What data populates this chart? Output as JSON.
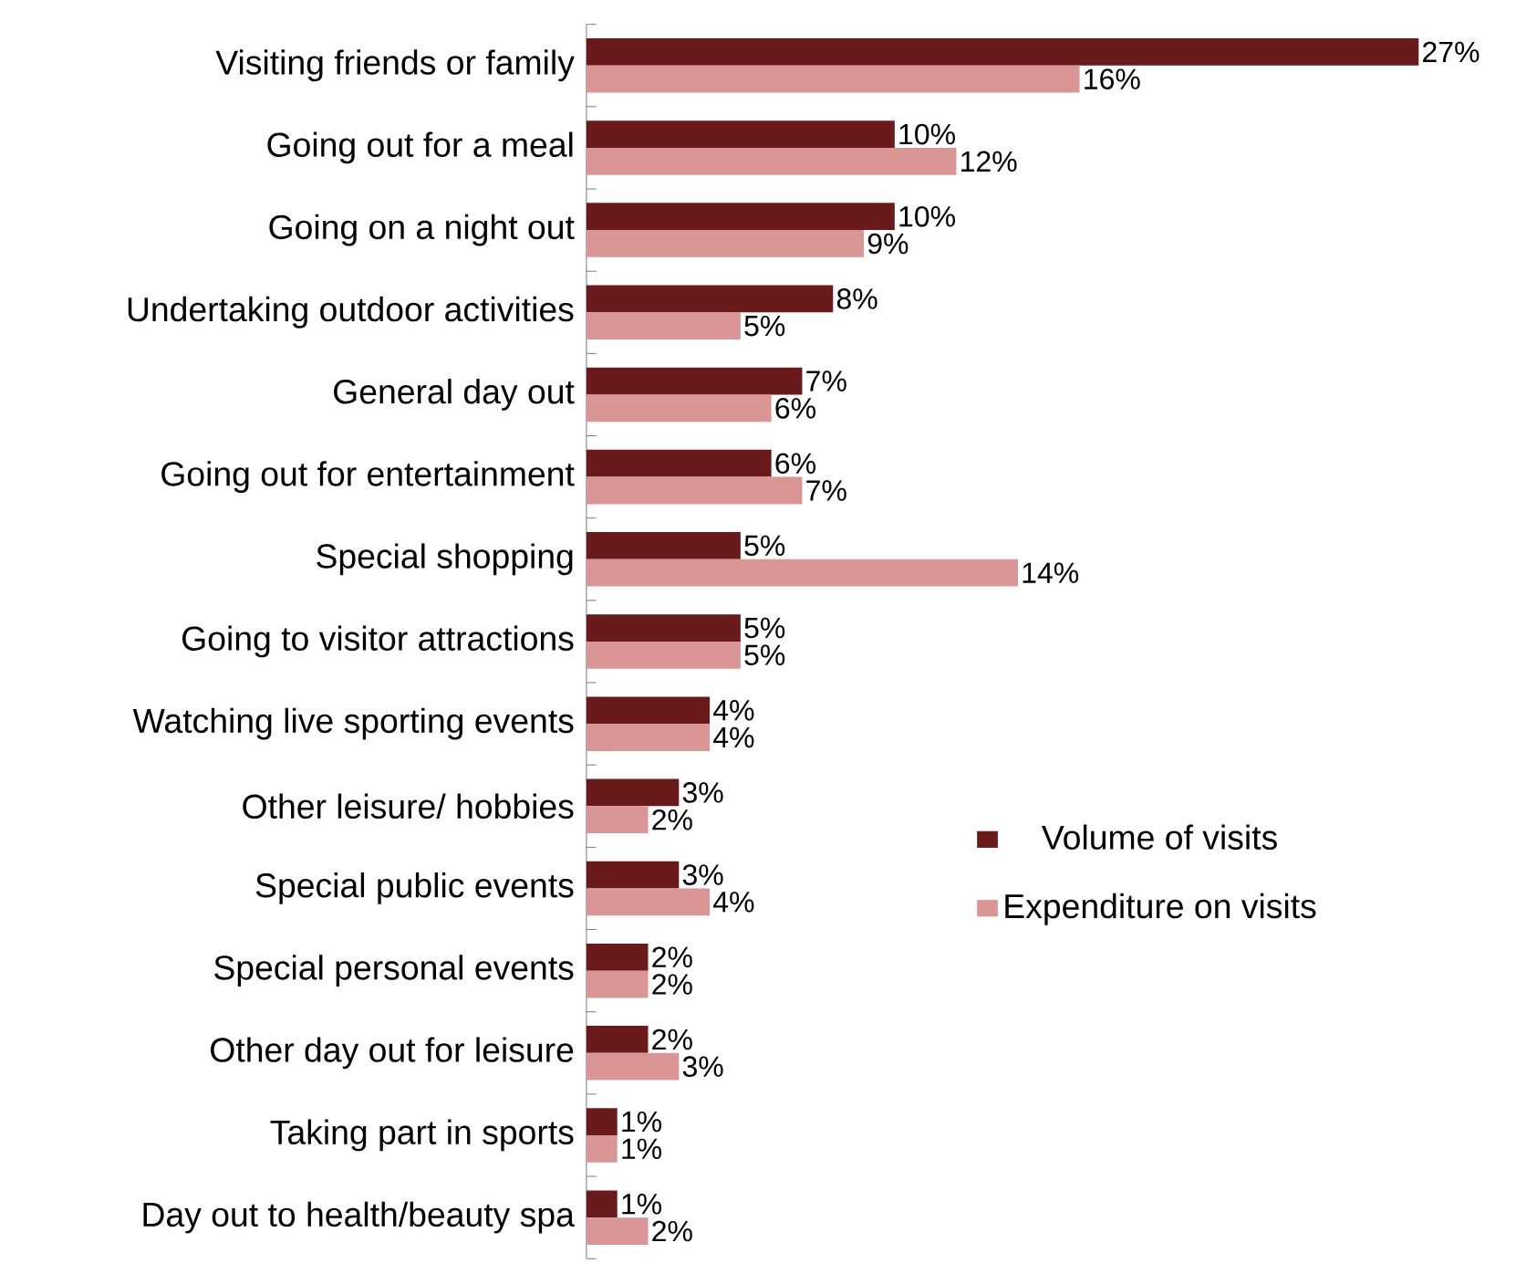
{
  "chart_data": {
    "type": "bar",
    "orientation": "horizontal",
    "legend": "right",
    "categories": [
      "Visiting friends or family",
      "Going out for a meal",
      "Going on a night out",
      "Undertaking outdoor activities",
      "General day out",
      "Going out for entertainment",
      "Special shopping",
      "Going to visitor attractions",
      "Watching live sporting events",
      "Other leisure/ hobbies",
      "Special public events",
      "Special personal events",
      "Other day out for leisure",
      "Taking part in sports",
      "Day out to health/beauty spa"
    ],
    "series": [
      {
        "name": "Volume of visits",
        "color": "#6b1a1c",
        "values": [
          27,
          10,
          10,
          8,
          7,
          6,
          5,
          5,
          4,
          3,
          3,
          2,
          2,
          1,
          1
        ],
        "value_labels": [
          "27%",
          "10%",
          "10%",
          "8%",
          "7%",
          "6%",
          "5%",
          "5%",
          "4%",
          "3%",
          "3%",
          "2%",
          "2%",
          "1%",
          "1%"
        ]
      },
      {
        "name": "Expenditure on visits",
        "color": "#d99694",
        "values": [
          16,
          12,
          9,
          5,
          6,
          7,
          14,
          5,
          4,
          2,
          4,
          2,
          3,
          1,
          2
        ],
        "value_labels": [
          "16%",
          "12%",
          "9%",
          "5%",
          "6%",
          "7%",
          "14%",
          "5%",
          "4%",
          "2%",
          "4%",
          "2%",
          "3%",
          "1%",
          "2%"
        ]
      }
    ]
  }
}
